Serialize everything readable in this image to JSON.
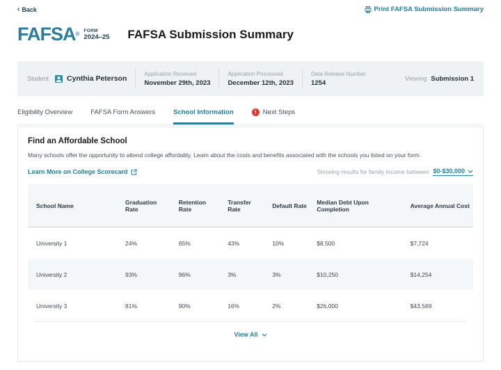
{
  "topbar": {
    "back_label": "Back",
    "print_label": "Print FAFSA Submission Summary"
  },
  "masthead": {
    "brand": "FAFSA",
    "registered_mark": "®",
    "form_label": "FORM",
    "form_years": "2024–25",
    "page_title": "FAFSA Submission Summary"
  },
  "student_bar": {
    "role_label": "Student",
    "student_name": "Cynthia Peterson",
    "fields": [
      {
        "label": "Application Received",
        "value": "November 29th, 2023"
      },
      {
        "label": "Application Processed",
        "value": "December 12th, 2023"
      },
      {
        "label": "Data Release Number",
        "value": "1254"
      }
    ],
    "viewing_label": "Viewing",
    "viewing_value": "Submission 1"
  },
  "tabs": [
    {
      "label": "Eligibility Overview",
      "active": false,
      "alert": false
    },
    {
      "label": "FAFSA Form Answers",
      "active": false,
      "alert": false
    },
    {
      "label": "School Information",
      "active": true,
      "alert": false
    },
    {
      "label": "Next Steps",
      "active": false,
      "alert": true
    }
  ],
  "school_section": {
    "heading": "Find an Affordable School",
    "description": "Many schools offer the opportunity to attend college affordably. Learn about the costs and benefits associated with the schools you listed on your form.",
    "scorecard_link_label": "Learn More on College Scorecard",
    "filter_prefix": "Showing results for family income between",
    "filter_value": "$0-$30,000",
    "view_all_label": "View All"
  },
  "chart_data": {
    "type": "table",
    "columns": [
      "School Name",
      "Graduation Rate",
      "Retention Rate",
      "Transfer Rate",
      "Default Rate",
      "Median Debt Upon Completion",
      "Average Annual Cost"
    ],
    "rows": [
      [
        "University 1",
        "24%",
        "65%",
        "43%",
        "10%",
        "$8,500",
        "$7,724"
      ],
      [
        "University 2",
        "93%",
        "96%",
        "3%",
        "3%",
        "$10,250",
        "$14,254"
      ],
      [
        "University 3",
        "81%",
        "90%",
        "16%",
        "2%",
        "$26,000",
        "$43,569"
      ]
    ]
  },
  "colors": {
    "brand_teal": "#2e7d9a",
    "link_teal": "#1e7f9e",
    "navy": "#1c3e57",
    "alert_red": "#d83933",
    "bar_bg": "#eef2f4",
    "zebra_bg": "#f4f7f9"
  }
}
